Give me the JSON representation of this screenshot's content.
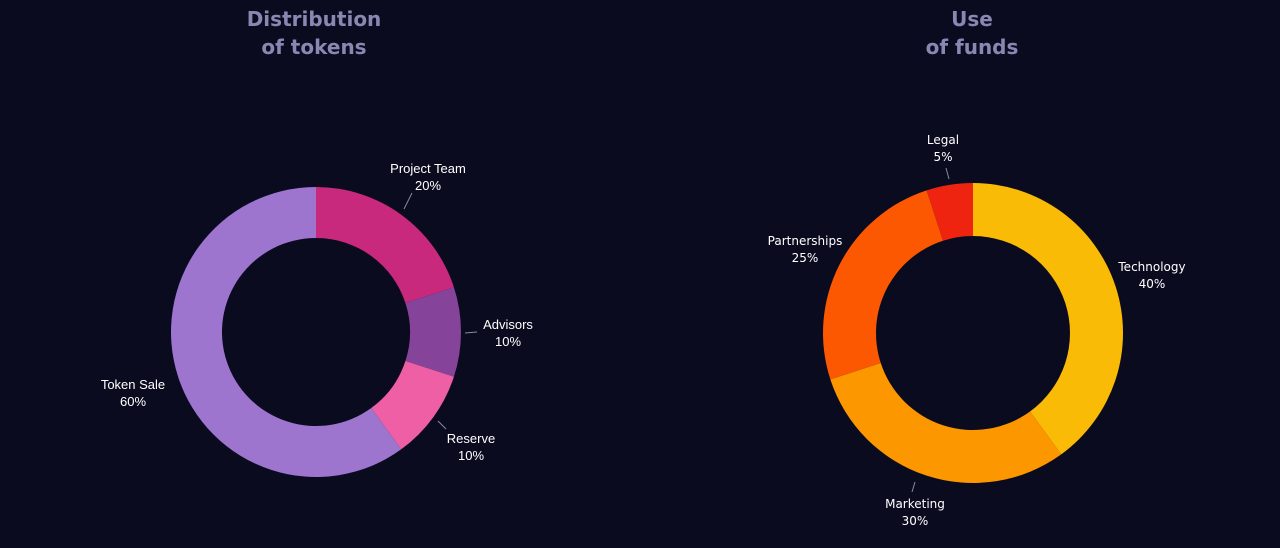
{
  "chart_data": [
    {
      "type": "pie",
      "donut": true,
      "title_lines": [
        "Distribution",
        "of tokens"
      ],
      "slices": [
        {
          "label": "Project Team",
          "value_label": "20%",
          "value": 20,
          "color": "#c8297c"
        },
        {
          "label": "Advisors",
          "value_label": "10%",
          "value": 10,
          "color": "#85449a"
        },
        {
          "label": "Reserve",
          "value_label": "10%",
          "value": 10,
          "color": "#ee5fa6"
        },
        {
          "label": "Token Sale",
          "value_label": "60%",
          "value": 60,
          "color": "#9d75cf"
        }
      ]
    },
    {
      "type": "pie",
      "donut": true,
      "title_lines": [
        "Use",
        "of funds"
      ],
      "slices": [
        {
          "label": "Technology",
          "value_label": "40%",
          "value": 40,
          "color": "#f9bb05"
        },
        {
          "label": "Marketing",
          "value_label": "30%",
          "value": 30,
          "color": "#fd9700"
        },
        {
          "label": "Partnerships",
          "value_label": "25%",
          "value": 25,
          "color": "#fb5801"
        },
        {
          "label": "Legal",
          "value_label": "5%",
          "value": 5,
          "color": "#ee2410"
        }
      ]
    }
  ]
}
